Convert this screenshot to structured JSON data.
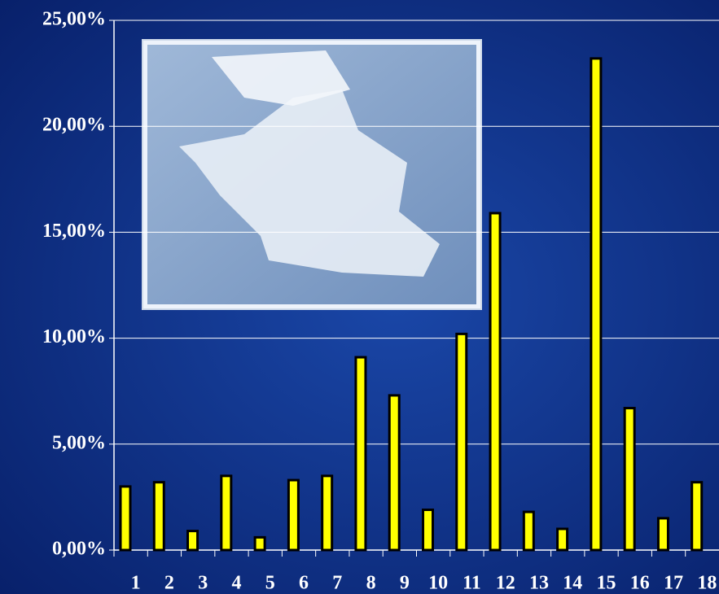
{
  "chart_data": {
    "type": "bar",
    "categories": [
      "1",
      "2",
      "3",
      "4",
      "5",
      "6",
      "7",
      "8",
      "9",
      "10",
      "11",
      "12",
      "13",
      "14",
      "15",
      "16",
      "17",
      "18"
    ],
    "values": [
      3.0,
      3.2,
      0.9,
      3.5,
      0.6,
      3.3,
      3.5,
      9.1,
      7.3,
      1.9,
      10.2,
      15.9,
      1.8,
      1.0,
      23.2,
      6.7,
      1.5,
      3.2
    ],
    "color": "#ffff00",
    "ylim": [
      0,
      25
    ],
    "yticks": [
      {
        "value": 0,
        "label": "0,00%"
      },
      {
        "value": 5,
        "label": "5,00%"
      },
      {
        "value": 10,
        "label": "10,00%"
      },
      {
        "value": 15,
        "label": "15,00%"
      },
      {
        "value": 20,
        "label": "20,00%"
      },
      {
        "value": 25,
        "label": "25,00%"
      }
    ],
    "grid": true
  }
}
